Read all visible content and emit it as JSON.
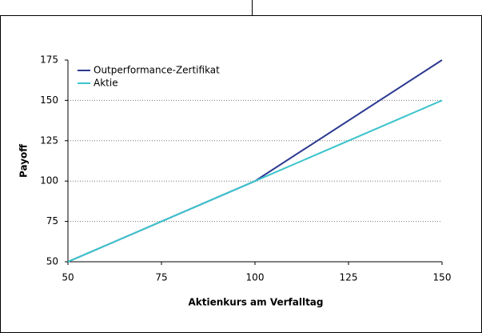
{
  "chart_data": {
    "type": "line",
    "x_label": "Aktienkurs am Verfalltag",
    "y_label": "Payoff",
    "x": [
      50,
      100,
      150
    ],
    "series": [
      {
        "name": "Outperformance-Zertifikat",
        "color": "#2b3990",
        "values": [
          50,
          100,
          175
        ]
      },
      {
        "name": "Aktie",
        "color": "#3cc4cc",
        "values": [
          50,
          100,
          150
        ]
      }
    ],
    "xlim": [
      50,
      150
    ],
    "xticks": [
      50,
      75,
      100,
      125,
      150
    ],
    "ylim": [
      50,
      175
    ],
    "yticks": [
      50,
      75,
      100,
      125,
      150,
      175
    ],
    "grid": true,
    "legend": "top-left"
  }
}
